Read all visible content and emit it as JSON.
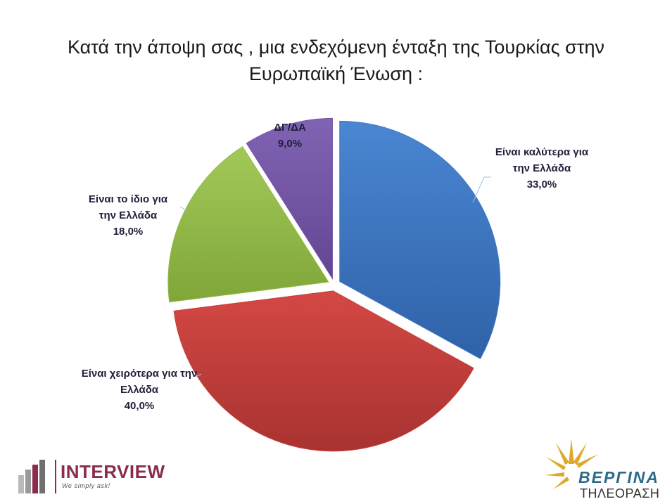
{
  "chart_data": {
    "type": "pie",
    "title_lines": [
      "Κατά την άποψη σας , μια ενδεχόμενη ένταξη της Τουρκίας στην",
      "Ευρωπαϊκή Ένωση :"
    ],
    "slices": [
      {
        "label_lines": [
          "Είναι καλύτερα για",
          "την Ελλάδα"
        ],
        "value": 33.0,
        "value_label": "33,0%",
        "color": "#3f78c4"
      },
      {
        "label_lines": [
          "Είναι χειρότερα για την",
          "Ελλάδα"
        ],
        "value": 40.0,
        "value_label": "40,0%",
        "color": "#c9403c"
      },
      {
        "label_lines": [
          "Είναι το ίδιο για",
          "την Ελλάδα"
        ],
        "value": 18.0,
        "value_label": "18,0%",
        "color": "#93bb48"
      },
      {
        "label_lines": [
          "ΔΓ/ΔΑ"
        ],
        "value": 9.0,
        "value_label": "9,0%",
        "color": "#7556a6"
      }
    ]
  },
  "logos": {
    "interview": {
      "name": "INTERVIEW",
      "tagline": "We simply ask!"
    },
    "vergina": {
      "name": "ΒΕΡΓΙΝΑ",
      "subtitle": "ΤΗΛΕΟΡΑΣΗ"
    }
  }
}
